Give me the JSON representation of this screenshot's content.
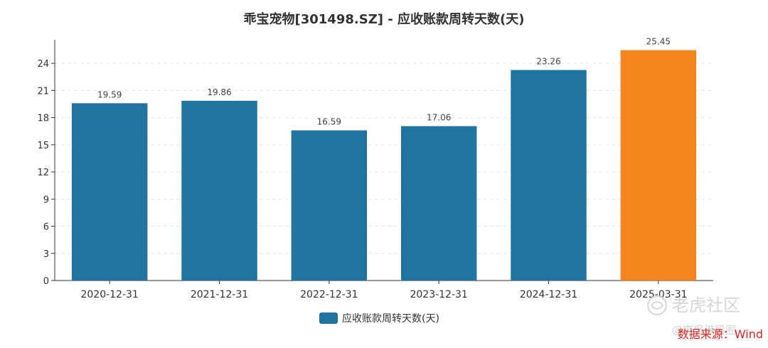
{
  "chart_data": {
    "type": "bar",
    "title": "乖宝宠物[301498.SZ] - 应收账款周转天数(天)",
    "categories": [
      "2020-12-31",
      "2021-12-31",
      "2022-12-31",
      "2023-12-31",
      "2024-12-31",
      "2025-03-31"
    ],
    "series": [
      {
        "name": "应收账款周转天数(天)",
        "values": [
          19.59,
          19.86,
          16.59,
          17.06,
          23.26,
          25.45
        ]
      }
    ],
    "data_labels": [
      "19.59",
      "19.86",
      "16.59",
      "17.06",
      "23.26",
      "25.45"
    ],
    "yticks": [
      "0",
      "3",
      "6",
      "9",
      "12",
      "15",
      "18",
      "21",
      "24"
    ],
    "ylim": [
      0,
      26.6
    ],
    "grid": true,
    "legend_position": "bottom",
    "colors": {
      "bar": "#22739f",
      "highlight": "#f5841f",
      "highlight_index": 5
    }
  },
  "source_text": "数据来源：Wind",
  "watermark": {
    "brand": "老虎社区",
    "sub": "@東吳港股圈"
  }
}
